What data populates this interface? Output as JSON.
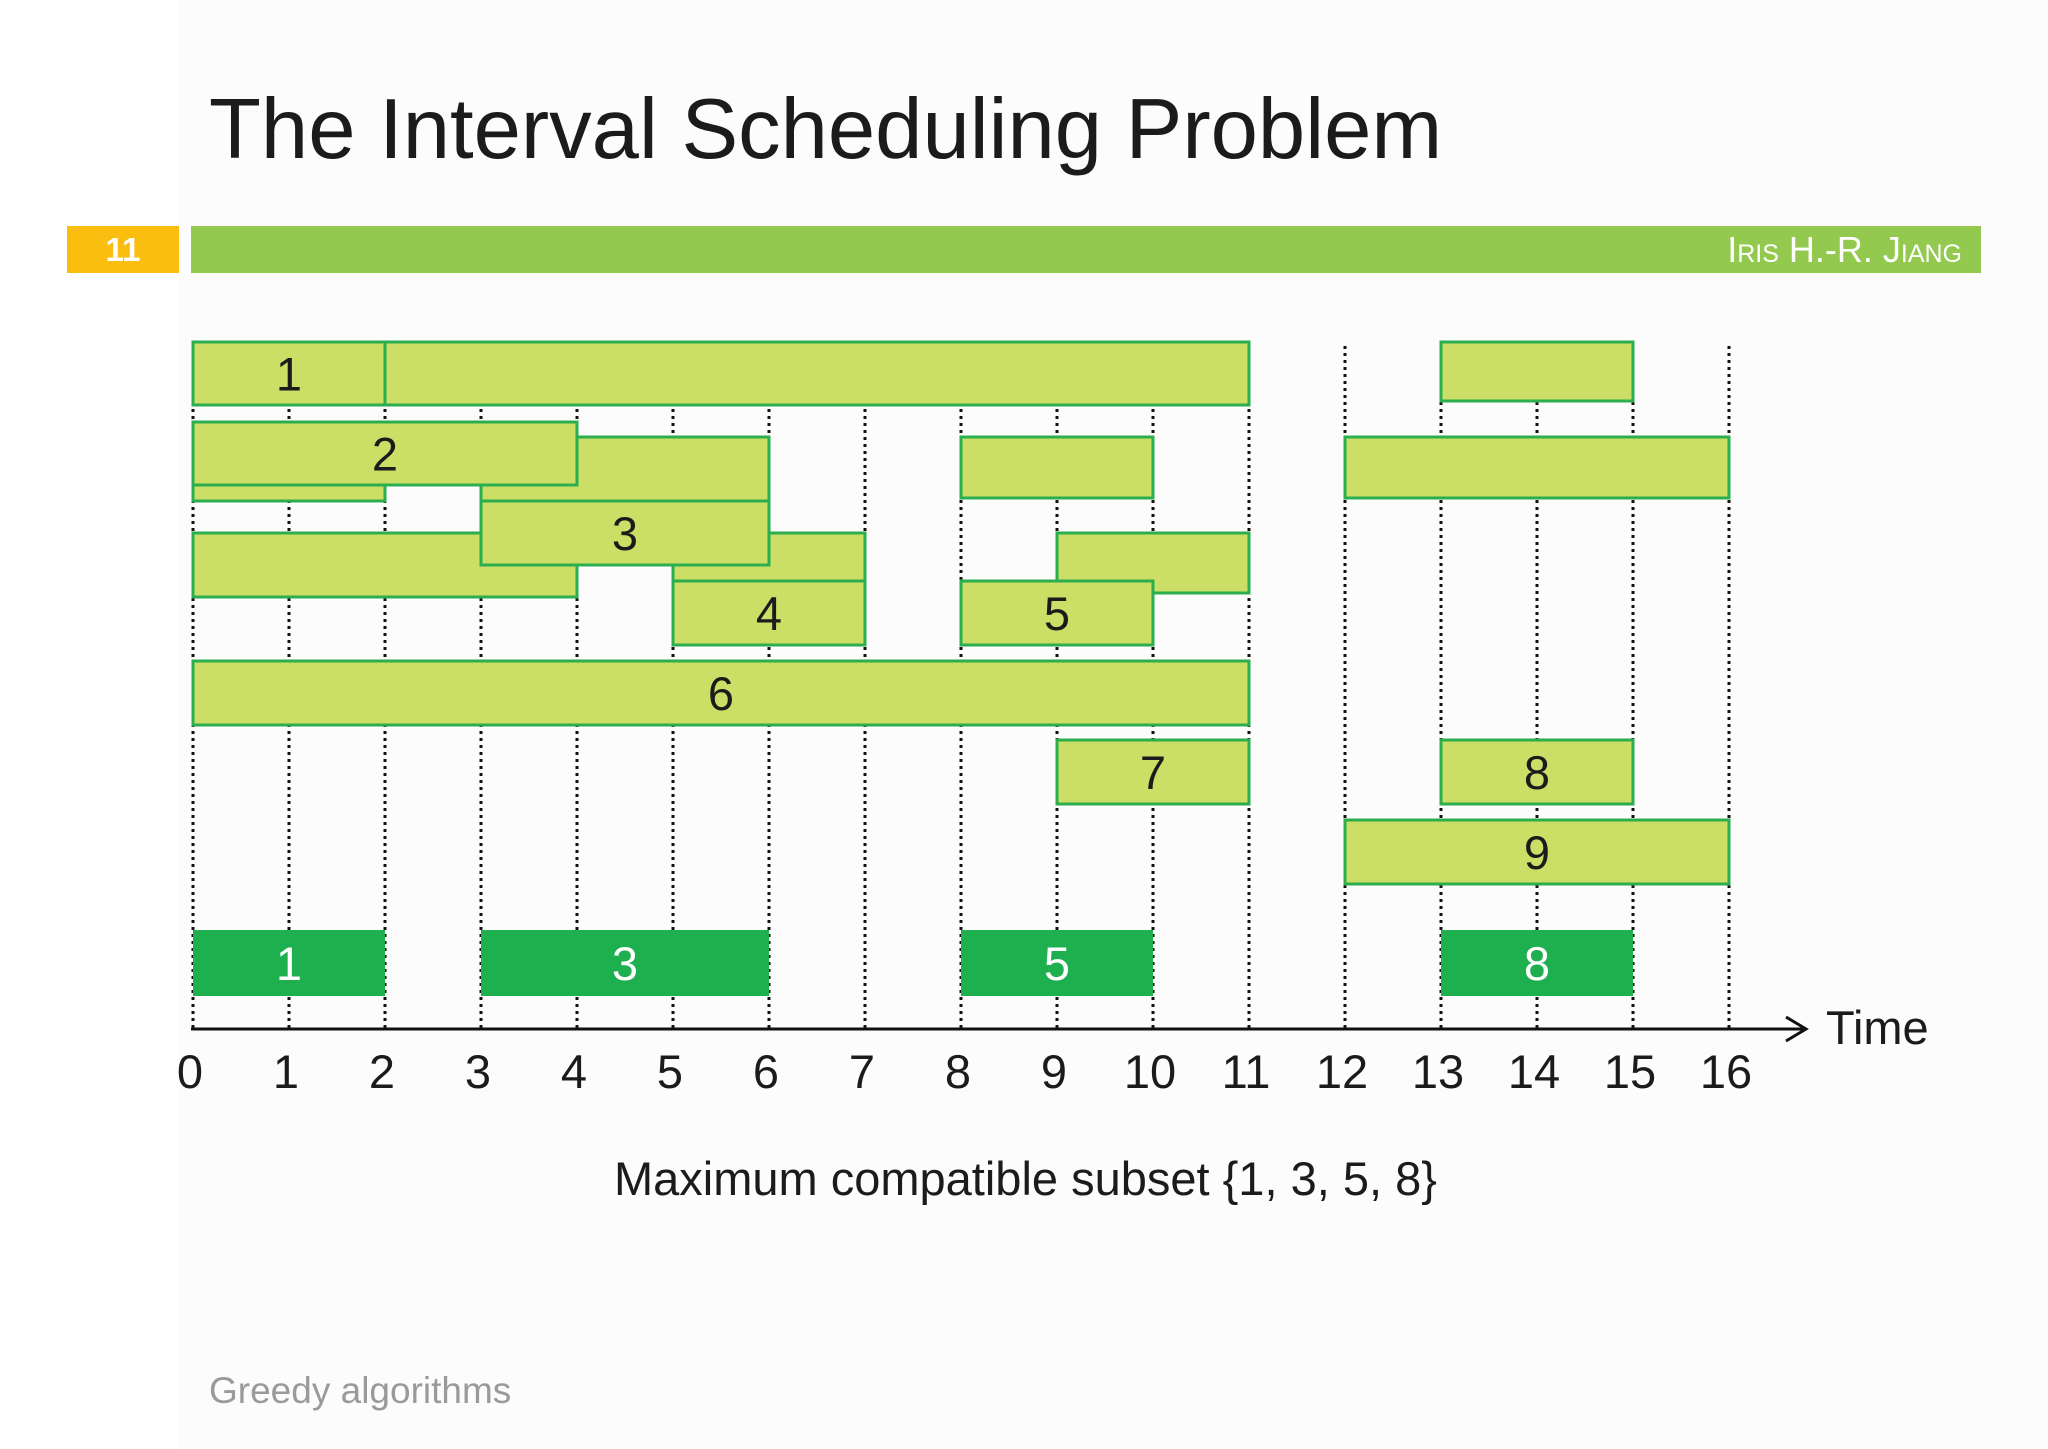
{
  "slide": {
    "title": "The Interval Scheduling Problem",
    "number": "11",
    "author": "Iris H.-R. Jiang",
    "footer": "Greedy algorithms"
  },
  "diagram": {
    "axis": {
      "label": "Time",
      "min": 0,
      "max": 16,
      "ticks": [
        "0",
        "1",
        "2",
        "3",
        "4",
        "5",
        "6",
        "7",
        "8",
        "9",
        "10",
        "11",
        "12",
        "13",
        "14",
        "15",
        "16"
      ]
    },
    "intervals": [
      {
        "start": 2,
        "end": 11
      },
      {
        "label": "1",
        "start": 0,
        "end": 2
      },
      {
        "start": 13,
        "end": 15
      },
      {
        "start": 0,
        "end": 2
      },
      {
        "start": 3,
        "end": 6
      },
      {
        "start": 0,
        "end": 4
      },
      {
        "start": 5,
        "end": 7
      },
      {
        "label": "2",
        "start": 0,
        "end": 4
      },
      {
        "label": "3",
        "start": 3,
        "end": 6
      },
      {
        "label": "4",
        "start": 5,
        "end": 7
      },
      {
        "start": 8,
        "end": 10
      },
      {
        "start": 9,
        "end": 11
      },
      {
        "label": "5",
        "start": 8,
        "end": 10
      },
      {
        "label": "6",
        "start": 0,
        "end": 11
      },
      {
        "label": "7",
        "start": 9,
        "end": 11
      },
      {
        "start": 12,
        "end": 16
      },
      {
        "label": "8",
        "start": 13,
        "end": 15
      },
      {
        "label": "9",
        "start": 12,
        "end": 16
      }
    ],
    "selected": [
      {
        "label": "1",
        "start": 0,
        "end": 2
      },
      {
        "label": "3",
        "start": 3,
        "end": 6
      },
      {
        "label": "5",
        "start": 8,
        "end": 10
      },
      {
        "label": "8",
        "start": 13,
        "end": 15
      }
    ],
    "caption": "Maximum compatible subset {1, 3, 5, 8}"
  },
  "colors": {
    "header_bar": "#92C94E",
    "badge": "#F9BE10",
    "interval_fill": "#CBDE66",
    "interval_border": "#2BAE4E",
    "selected_fill": "#1EB04E",
    "selected_label": "#FFFFFF",
    "axis": "#111111"
  }
}
